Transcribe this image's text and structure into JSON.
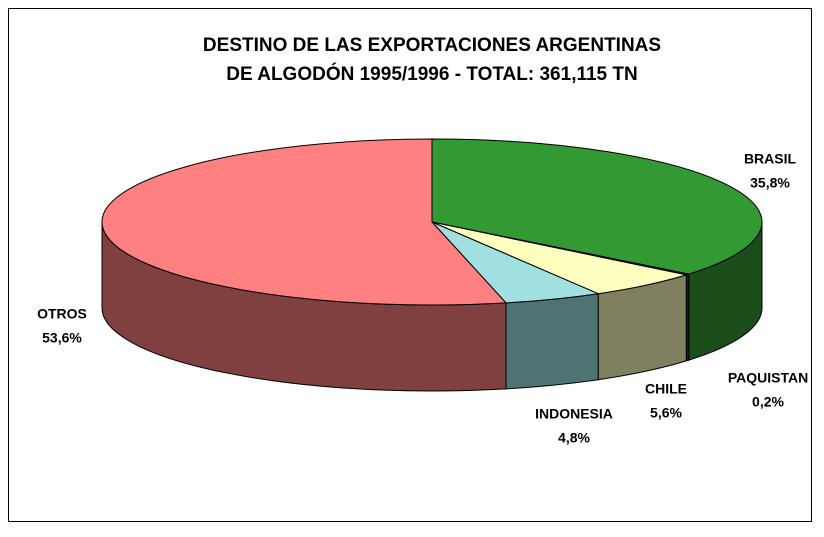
{
  "chart_data": {
    "type": "pie3d",
    "title": [
      "DESTINO DE LAS EXPORTACIONES ARGENTINAS",
      "DE ALGODÓN 1995/1996 - TOTAL: 361,115 TN"
    ],
    "categories": [
      "BRASIL",
      "PAQUISTAN",
      "CHILE",
      "INDONESIA",
      "OTROS"
    ],
    "values": [
      35.8,
      0.2,
      5.6,
      4.8,
      53.6
    ],
    "value_labels": [
      "35,8%",
      "0,2%",
      "5,6%",
      "4,8%",
      "53,6%"
    ],
    "colors": [
      "#339933",
      "#1a4d1a",
      "#ffffc0",
      "#a0e0e0",
      "#ff8080"
    ],
    "side_colors": [
      "#1a4d1a",
      "#0d260d",
      "#808060",
      "#4d7373",
      "#804040"
    ]
  }
}
